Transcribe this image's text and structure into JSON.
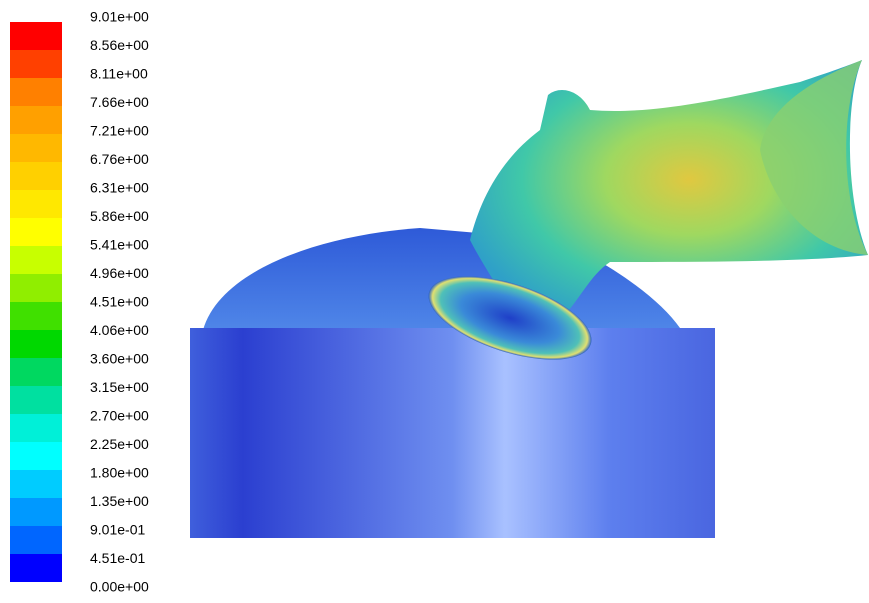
{
  "colorbar": {
    "labels": [
      "9.01e+00",
      "8.56e+00",
      "8.11e+00",
      "7.66e+00",
      "7.21e+00",
      "6.76e+00",
      "6.31e+00",
      "5.86e+00",
      "5.41e+00",
      "4.96e+00",
      "4.51e+00",
      "4.06e+00",
      "3.60e+00",
      "3.15e+00",
      "2.70e+00",
      "2.25e+00",
      "1.80e+00",
      "1.35e+00",
      "9.01e-01",
      "4.51e-01",
      "0.00e+00"
    ],
    "colors": [
      "#ff0000",
      "#ff4000",
      "#ff8000",
      "#ffa000",
      "#ffb800",
      "#ffd000",
      "#ffe800",
      "#ffff00",
      "#c8ff00",
      "#90ee00",
      "#40e000",
      "#00d800",
      "#00d860",
      "#00e0a0",
      "#00f0d8",
      "#00ffff",
      "#00ccff",
      "#0099ff",
      "#0066ff",
      "#0000ff"
    ]
  }
}
